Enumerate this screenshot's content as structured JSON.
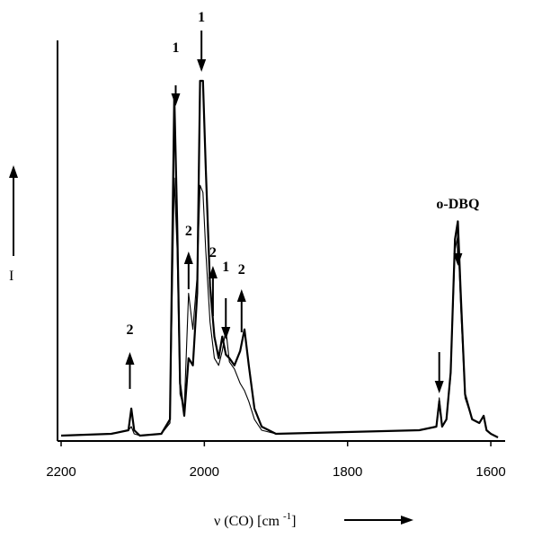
{
  "chart_data": {
    "type": "line",
    "title": "",
    "xlabel": "ν (CO) [cm -1]",
    "ylabel": "I",
    "xlim": [
      2200,
      1580
    ],
    "ylim": [
      0,
      100
    ],
    "x_ticks": [
      2200,
      2000,
      1800,
      1600
    ],
    "x_tick_labels": [
      "2200",
      "2000",
      "1800",
      "1600"
    ],
    "grid": false,
    "series": [
      {
        "x": [
          2200,
          2130,
          2106,
          2102,
          2098,
          2090,
          2060,
          2048,
          2042,
          2038,
          2034,
          2028,
          2022,
          2016,
          2010,
          2006,
          2002,
          1998,
          1992,
          1986,
          1980,
          1975,
          1970,
          1965,
          1958,
          1950,
          1944,
          1938,
          1930,
          1920,
          1900,
          1800,
          1700,
          1676,
          1672,
          1668,
          1662,
          1656,
          1650,
          1646,
          1642,
          1636,
          1626,
          1616,
          1610,
          1606,
          1600,
          1590
        ],
        "y": [
          0.5,
          1,
          2,
          8,
          2,
          0.5,
          1,
          5,
          95,
          60,
          15,
          6,
          22,
          20,
          40,
          99,
          99,
          75,
          42,
          28,
          22,
          28,
          23,
          22,
          20,
          24,
          30,
          20,
          8,
          3,
          1,
          1.5,
          2,
          3,
          10,
          3,
          5,
          18,
          55,
          60,
          40,
          12,
          5,
          4,
          6,
          2,
          1,
          0
        ]
      },
      {
        "x": [
          2200,
          2130,
          2106,
          2102,
          2098,
          2090,
          2060,
          2048,
          2042,
          2038,
          2034,
          2028,
          2022,
          2016,
          2010,
          2006,
          2002,
          1998,
          1992,
          1986,
          1980,
          1975,
          1970,
          1965,
          1958,
          1950,
          1944,
          1938,
          1930,
          1920,
          1900,
          1800,
          1700,
          1676,
          1672,
          1668,
          1662,
          1656,
          1650,
          1646,
          1642,
          1636,
          1626,
          1616,
          1610,
          1606,
          1600,
          1590
        ],
        "y": [
          0.5,
          1,
          2,
          3,
          1,
          0.5,
          1,
          4,
          72,
          52,
          12,
          8,
          40,
          30,
          45,
          70,
          68,
          52,
          32,
          22,
          20,
          24,
          30,
          21,
          19,
          15,
          13,
          10,
          5,
          2,
          1,
          1.5,
          2,
          3,
          11,
          3,
          5,
          17,
          52,
          56,
          36,
          11,
          5,
          4,
          6,
          2,
          1,
          0
        ]
      }
    ],
    "annotations": [
      {
        "label": "1",
        "x": 2040,
        "direction": "down"
      },
      {
        "label": "1",
        "x": 2004,
        "direction": "down"
      },
      {
        "label": "2",
        "x": 2104,
        "direction": "up"
      },
      {
        "label": "2",
        "x": 2022,
        "direction": "up"
      },
      {
        "label": "2",
        "x": 1988,
        "direction": "up"
      },
      {
        "label": "1",
        "x": 1970,
        "direction": "down"
      },
      {
        "label": "2",
        "x": 1948,
        "direction": "up"
      },
      {
        "label": "o-DBQ",
        "x": 1646,
        "direction": "down"
      },
      {
        "label": "",
        "x": 1672,
        "direction": "down"
      }
    ]
  }
}
